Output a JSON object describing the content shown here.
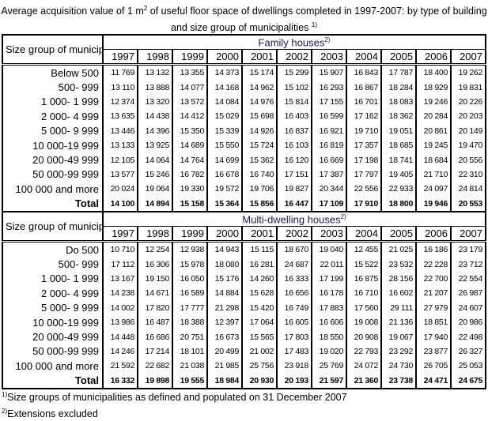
{
  "title": "Average acquisition value of 1 m2 of useful floor space of dwellings completed in 1997-2007: by type of building and size group of municipalities 1)",
  "title_parts": {
    "a": "Average acquisition value of 1 m",
    "sup2": "2",
    "b": " of useful floor space of dwellings completed in 1997-2007: by type of building and size group of municipalities ",
    "sup1": "1)"
  },
  "size_group_header": "Size group of municipalities",
  "years": [
    "1997",
    "1998",
    "1999",
    "2000",
    "2001",
    "2002",
    "2003",
    "2004",
    "2005",
    "2006",
    "2007"
  ],
  "tables": [
    {
      "group": "Family houses",
      "group_sup": "2)",
      "rows": [
        [
          "Below 500",
          "11 769",
          "13 132",
          "13 355",
          "14 373",
          "15 174",
          "15 299",
          "15 907",
          "16 843",
          "17 787",
          "18 400",
          "19 262"
        ],
        [
          "500-   999",
          "13 110",
          "13 888",
          "14 077",
          "14 168",
          "14 962",
          "15 102",
          "16 293",
          "16 867",
          "18 284",
          "18 929",
          "19 831"
        ],
        [
          "1 000- 1 999",
          "12 374",
          "13 320",
          "13 572",
          "14 084",
          "14 976",
          "15 814",
          "17 155",
          "16 701",
          "18 083",
          "19 246",
          "20 226"
        ],
        [
          "2 000- 4 999",
          "13 635",
          "14 438",
          "14 412",
          "15 029",
          "15 698",
          "16 403",
          "16 599",
          "17 162",
          "18 362",
          "20 284",
          "20 203"
        ],
        [
          "5 000- 9 999",
          "13 446",
          "14 396",
          "15 350",
          "15 339",
          "14 926",
          "16 837",
          "16 921",
          "19 710",
          "19 051",
          "20 861",
          "20 149"
        ],
        [
          "10 000-19 999",
          "13 133",
          "13 925",
          "14 689",
          "15 550",
          "15 724",
          "16 103",
          "16 819",
          "17 357",
          "18 685",
          "19 245",
          "19 470"
        ],
        [
          "20 000-49 999",
          "12 105",
          "14 064",
          "14 764",
          "14 699",
          "15 362",
          "16 120",
          "16 669",
          "17 198",
          "18 741",
          "18 684",
          "20 556"
        ],
        [
          "50 000-99 999",
          "13 577",
          "15 246",
          "16 782",
          "16 678",
          "16 740",
          "17 151",
          "17 387",
          "17 797",
          "19 405",
          "21 710",
          "22 310"
        ],
        [
          "100 000 and more",
          "20 024",
          "19 064",
          "19 330",
          "19 572",
          "19 706",
          "19 827",
          "20 344",
          "22 556",
          "22 933",
          "24 097",
          "24 814"
        ],
        [
          "Total",
          "14 100",
          "14 894",
          "15 158",
          "15 364",
          "15 856",
          "16 447",
          "17 109",
          "17 910",
          "18 800",
          "19 946",
          "20 553"
        ]
      ]
    },
    {
      "group": "Multi-dwelling houses",
      "group_sup": "2)",
      "rows": [
        [
          "Do 500",
          "10 710",
          "12 254",
          "12 938",
          "14 943",
          "15 115",
          "18 670",
          "19 040",
          "12 455",
          "21 025",
          "16 186",
          "23 179"
        ],
        [
          "500-   999",
          "17 112",
          "16 306",
          "15 978",
          "18 080",
          "16 281",
          "24 687",
          "22 011",
          "15 522",
          "23 532",
          "22 228",
          "23 712"
        ],
        [
          "1 000- 1 999",
          "13 167",
          "19 150",
          "16 050",
          "15 176",
          "14 260",
          "16 333",
          "17 199",
          "16 875",
          "28 156",
          "22 700",
          "22 554"
        ],
        [
          "2 000- 4 999",
          "14 238",
          "14 671",
          "16 589",
          "14 884",
          "15 628",
          "16 656",
          "16 178",
          "16 710",
          "16 602",
          "21 207",
          "26 987"
        ],
        [
          "5 000- 9 999",
          "14 002",
          "17 820",
          "17 777",
          "21 298",
          "15 420",
          "16 749",
          "17 883",
          "17 560",
          "29 111",
          "27 979",
          "24 607"
        ],
        [
          "10 000-19 999",
          "13 986",
          "16 487",
          "18 388",
          "12 397",
          "17 064",
          "16 605",
          "16 606",
          "19 008",
          "21 136",
          "18 851",
          "20 986"
        ],
        [
          "20 000-49 999",
          "14 448",
          "16 686",
          "20 751",
          "16 673",
          "15 565",
          "17 803",
          "18 550",
          "20 908",
          "19 067",
          "17 940",
          "22 498"
        ],
        [
          "50 000-99 999",
          "14 246",
          "17 214",
          "18 101",
          "20 499",
          "21 002",
          "17 483",
          "19 020",
          "22 793",
          "23 292",
          "23 877",
          "26 327"
        ],
        [
          "100 000 and more",
          "21 592",
          "22 682",
          "21 038",
          "21 985",
          "25 756",
          "23 918",
          "25 769",
          "24 072",
          "24 730",
          "26 705",
          "25 053"
        ],
        [
          "Total",
          "16 332",
          "19 898",
          "19 555",
          "18 984",
          "20 930",
          "20 193",
          "21 597",
          "21 360",
          "23 738",
          "24 471",
          "24 675"
        ]
      ]
    }
  ],
  "footnotes": [
    {
      "mark": "1)",
      "text": "Size groups of municipalities as defined and populated on 31 December 2007"
    },
    {
      "mark": "2)",
      "text": "Extensions excluded"
    }
  ]
}
